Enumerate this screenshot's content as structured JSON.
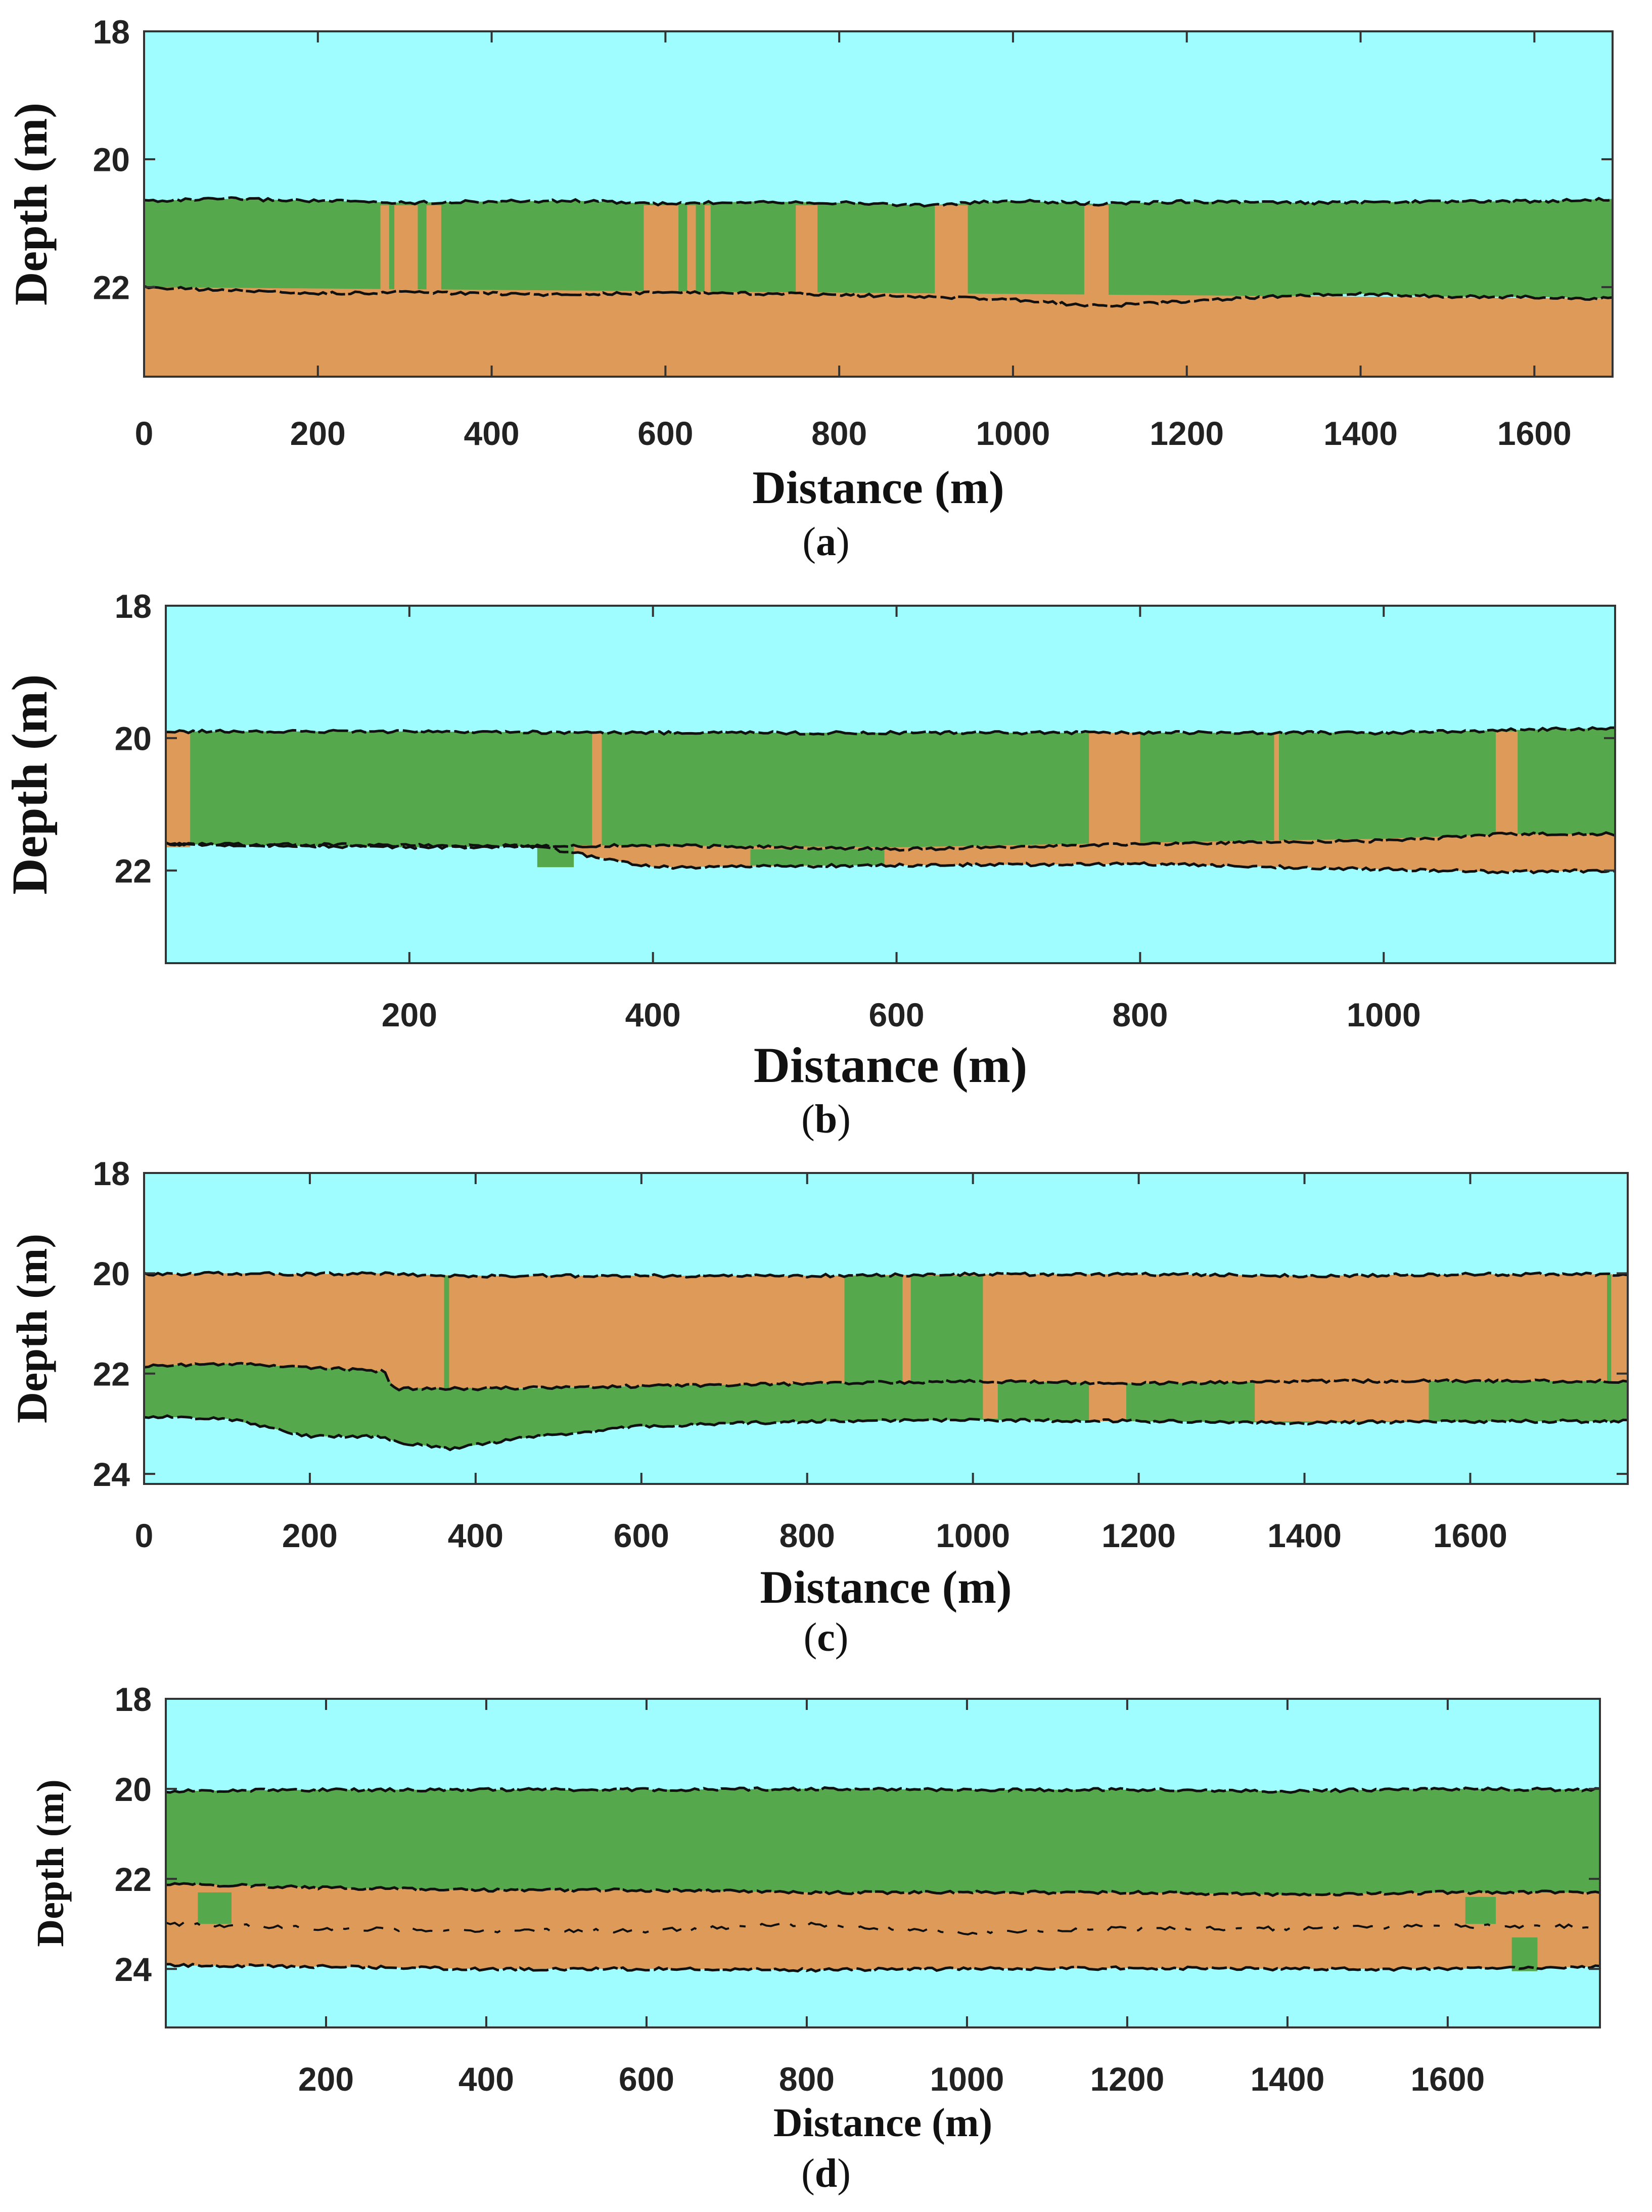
{
  "figure": {
    "colors": {
      "water": "#9ffdff",
      "green": "#55a84b",
      "tan": "#dd9a58",
      "boundary": "#111111"
    }
  },
  "chart_data": [
    {
      "id": "a",
      "type": "area",
      "caption": "(a)",
      "caption_letter": "a",
      "xlabel": "Distance (m)",
      "ylabel": "Depth (m)",
      "xlim": [
        0,
        1690
      ],
      "ylim": [
        18,
        23.4
      ],
      "y_reversed": true,
      "xticks": [
        0,
        200,
        400,
        600,
        800,
        1000,
        1200,
        1400,
        1600
      ],
      "yticks": [
        18,
        20,
        22
      ],
      "background": "water",
      "layers": [
        {
          "name": "green layer",
          "color": "green",
          "x": [
            0,
            100,
            200,
            300,
            400,
            500,
            600,
            700,
            800,
            900,
            1000,
            1100,
            1200,
            1300,
            1400,
            1500,
            1600,
            1690
          ],
          "top": [
            20.65,
            20.62,
            20.65,
            20.68,
            20.66,
            20.65,
            20.7,
            20.66,
            20.68,
            20.72,
            20.65,
            20.7,
            20.66,
            20.68,
            20.68,
            20.66,
            20.66,
            20.62
          ],
          "bottom": [
            22.0,
            22.05,
            22.1,
            22.08,
            22.1,
            22.12,
            22.08,
            22.1,
            22.12,
            22.15,
            22.2,
            22.3,
            22.22,
            22.15,
            22.1,
            22.15,
            22.15,
            22.18
          ]
        },
        {
          "name": "tan layer",
          "color": "tan",
          "x": [
            0,
            1690
          ],
          "top": [
            22.0,
            22.18
          ],
          "bottom": [
            23.4,
            23.4
          ],
          "follow": "green.bottom"
        }
      ],
      "patches": [
        {
          "x0": 272,
          "x1": 282,
          "top": 20.72,
          "bottom": 22.1,
          "color": "tan"
        },
        {
          "x0": 288,
          "x1": 315,
          "top": 20.72,
          "bottom": 22.1,
          "color": "tan"
        },
        {
          "x0": 325,
          "x1": 342,
          "top": 20.72,
          "bottom": 22.1,
          "color": "tan"
        },
        {
          "x0": 575,
          "x1": 615,
          "top": 20.72,
          "bottom": 22.1,
          "color": "tan"
        },
        {
          "x0": 625,
          "x1": 635,
          "top": 20.72,
          "bottom": 22.1,
          "color": "tan"
        },
        {
          "x0": 645,
          "x1": 652,
          "top": 20.72,
          "bottom": 22.1,
          "color": "tan"
        },
        {
          "x0": 750,
          "x1": 775,
          "top": 20.72,
          "bottom": 22.1,
          "color": "tan"
        },
        {
          "x0": 910,
          "x1": 948,
          "top": 20.72,
          "bottom": 22.2,
          "color": "tan"
        },
        {
          "x0": 1082,
          "x1": 1110,
          "top": 20.72,
          "bottom": 22.3,
          "color": "tan"
        }
      ],
      "boundaries": [
        "green.top",
        "green.bottom"
      ]
    },
    {
      "id": "b",
      "type": "area",
      "caption": "(b)",
      "caption_letter": "b",
      "xlabel": "Distance (m)",
      "ylabel": "Depth (m)",
      "xlim": [
        0,
        1190
      ],
      "ylim": [
        18,
        23.4
      ],
      "y_reversed": true,
      "xticks": [
        200,
        400,
        600,
        800,
        1000
      ],
      "yticks": [
        18,
        20,
        22
      ],
      "background": "water",
      "layers": [
        {
          "name": "green layer",
          "color": "green",
          "x": [
            0,
            200,
            400,
            600,
            800,
            1000,
            1100,
            1190
          ],
          "top": [
            19.9,
            19.9,
            19.92,
            19.92,
            19.92,
            19.92,
            19.88,
            19.85
          ],
          "bottom": [
            21.6,
            21.65,
            21.62,
            21.68,
            21.6,
            21.55,
            21.45,
            21.45
          ]
        },
        {
          "name": "tan layer",
          "color": "tan",
          "x": [
            0,
            200,
            300,
            400,
            600,
            800,
            1000,
            1100,
            1190
          ],
          "top": [
            21.6,
            21.62,
            21.62,
            21.62,
            21.65,
            21.58,
            21.52,
            21.45,
            21.45
          ],
          "bottom": [
            21.6,
            21.62,
            21.62,
            21.95,
            21.92,
            21.9,
            21.98,
            22.02,
            22.0
          ]
        }
      ],
      "patches": [
        {
          "x0": 0,
          "x1": 20,
          "top": 19.9,
          "bottom": 21.65,
          "color": "tan"
        },
        {
          "x0": 305,
          "x1": 335,
          "top": 21.62,
          "bottom": 21.95,
          "color": "green"
        },
        {
          "x0": 350,
          "x1": 358,
          "top": 19.9,
          "bottom": 21.62,
          "color": "tan"
        },
        {
          "x0": 480,
          "x1": 590,
          "top": 21.68,
          "bottom": 21.92,
          "color": "green"
        },
        {
          "x0": 758,
          "x1": 800,
          "top": 19.92,
          "bottom": 21.62,
          "color": "tan"
        },
        {
          "x0": 910,
          "x1": 914,
          "top": 19.92,
          "bottom": 21.6,
          "color": "tan"
        },
        {
          "x0": 1092,
          "x1": 1110,
          "top": 19.9,
          "bottom": 21.5,
          "color": "tan"
        }
      ],
      "boundaries": [
        "green.top",
        "green.bottom",
        "tan.bottom"
      ]
    },
    {
      "id": "c",
      "type": "area",
      "caption": "(c)",
      "caption_letter": "c",
      "xlabel": "Distance (m)",
      "ylabel": "Depth (m)",
      "xlim": [
        0,
        1790
      ],
      "ylim": [
        18,
        24.2
      ],
      "y_reversed": true,
      "xticks": [
        0,
        200,
        400,
        600,
        800,
        1000,
        1200,
        1400,
        1600
      ],
      "yticks": [
        18,
        20,
        22,
        24
      ],
      "background": "water",
      "layers": [
        {
          "name": "tan layer",
          "color": "tan",
          "x": [
            0,
            100,
            200,
            290,
            300,
            400,
            600,
            800,
            1000,
            1200,
            1400,
            1600,
            1790
          ],
          "top": [
            20.02,
            20.0,
            20.02,
            20.0,
            20.02,
            20.05,
            20.05,
            20.05,
            20.02,
            20.02,
            20.05,
            20.02,
            20.02
          ],
          "bottom": [
            21.85,
            21.8,
            21.88,
            21.95,
            22.3,
            22.3,
            22.25,
            22.2,
            22.15,
            22.2,
            22.15,
            22.15,
            22.15
          ]
        },
        {
          "name": "green layer",
          "color": "green",
          "x": [
            0,
            100,
            200,
            290,
            300,
            370,
            450,
            600,
            800,
            1000,
            1200,
            1400,
            1600,
            1790
          ],
          "top": [
            21.85,
            21.8,
            21.88,
            21.95,
            22.3,
            22.28,
            22.3,
            22.25,
            22.2,
            22.15,
            22.2,
            22.15,
            22.15,
            22.15
          ],
          "bottom": [
            22.85,
            22.9,
            23.25,
            23.25,
            23.35,
            23.5,
            23.3,
            23.05,
            22.95,
            22.92,
            22.95,
            22.98,
            22.95,
            22.95
          ]
        }
      ],
      "patches": [
        {
          "x0": 362,
          "x1": 368,
          "top": 20.05,
          "bottom": 22.3,
          "color": "green"
        },
        {
          "x0": 845,
          "x1": 915,
          "top": 20.05,
          "bottom": 22.2,
          "color": "green"
        },
        {
          "x0": 925,
          "x1": 1012,
          "top": 20.05,
          "bottom": 22.2,
          "color": "green"
        },
        {
          "x0": 1012,
          "x1": 1030,
          "top": 22.15,
          "bottom": 22.9,
          "color": "tan"
        },
        {
          "x0": 1140,
          "x1": 1185,
          "top": 22.18,
          "bottom": 22.95,
          "color": "tan"
        },
        {
          "x0": 1340,
          "x1": 1550,
          "top": 22.15,
          "bottom": 22.95,
          "color": "tan"
        },
        {
          "x0": 1765,
          "x1": 1770,
          "top": 20.02,
          "bottom": 22.15,
          "color": "green"
        }
      ],
      "boundaries": [
        "tan.top",
        "tan.bottom",
        "green.bottom"
      ]
    },
    {
      "id": "d",
      "type": "area",
      "caption": "(d)",
      "caption_letter": "d",
      "xlabel": "Distance (m)",
      "ylabel": "Depth (m)",
      "xlim": [
        0,
        1790
      ],
      "ylim": [
        18,
        25.3
      ],
      "y_reversed": true,
      "xticks": [
        200,
        400,
        600,
        800,
        1000,
        1200,
        1400,
        1600
      ],
      "yticks": [
        18,
        20,
        22,
        24
      ],
      "background": "water",
      "layers": [
        {
          "name": "green layer",
          "color": "green",
          "x": [
            0,
            200,
            400,
            600,
            800,
            1000,
            1200,
            1400,
            1600,
            1790
          ],
          "top": [
            20.05,
            20.02,
            20.02,
            20.02,
            20.0,
            20.02,
            20.02,
            20.05,
            20.0,
            20.02
          ],
          "bottom": [
            22.1,
            22.2,
            22.25,
            22.25,
            22.3,
            22.3,
            22.3,
            22.35,
            22.3,
            22.3
          ]
        },
        {
          "name": "tan layer",
          "color": "tan",
          "x": [
            0,
            200,
            400,
            600,
            800,
            1000,
            1200,
            1400,
            1600,
            1790
          ],
          "top": [
            22.1,
            22.2,
            22.25,
            22.25,
            22.3,
            22.3,
            22.3,
            22.35,
            22.3,
            22.3
          ],
          "bottom": [
            23.92,
            23.95,
            24.0,
            24.0,
            24.02,
            24.0,
            23.98,
            24.0,
            24.0,
            23.95
          ]
        }
      ],
      "patches": [
        {
          "x0": 40,
          "x1": 82,
          "top": 22.3,
          "bottom": 23.0,
          "color": "green"
        },
        {
          "x0": 1622,
          "x1": 1660,
          "top": 22.4,
          "bottom": 23.0,
          "color": "green"
        },
        {
          "x0": 1680,
          "x1": 1712,
          "top": 23.3,
          "bottom": 24.05,
          "color": "green"
        }
      ],
      "boundaries": [
        "green.top",
        "green.bottom",
        "tan.bottom"
      ],
      "internal_line": {
        "x": [
          0,
          200,
          400,
          600,
          800,
          1000,
          1200,
          1400,
          1600,
          1790
        ],
        "y": [
          23.0,
          23.1,
          23.15,
          23.15,
          23.0,
          23.2,
          23.1,
          23.1,
          23.05,
          23.05
        ]
      }
    }
  ]
}
